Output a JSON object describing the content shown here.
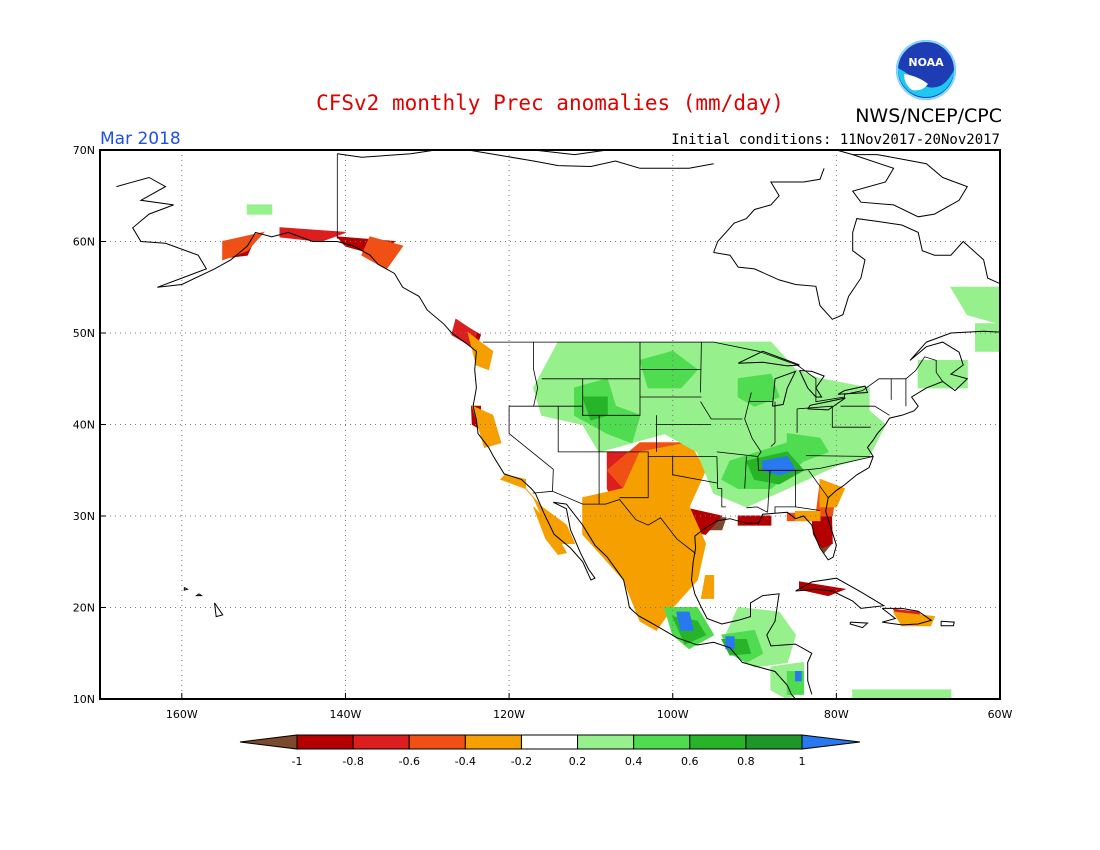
{
  "header": {
    "title": "CFSv2 monthly Prec anomalies (mm/day)",
    "month_label": "Mar 2018",
    "initial_conditions": "Initial conditions: 11Nov2017-20Nov2017",
    "agency": "NWS/NCEP/CPC",
    "logo_text": "NOAA"
  },
  "map": {
    "lon_range": [
      -170,
      -60
    ],
    "lat_range": [
      10,
      70
    ],
    "lon_ticks": [
      {
        "value": -160,
        "label": "160W"
      },
      {
        "value": -140,
        "label": "140W"
      },
      {
        "value": -120,
        "label": "120W"
      },
      {
        "value": -100,
        "label": "100W"
      },
      {
        "value": -80,
        "label": "80W"
      },
      {
        "value": -60,
        "label": "60W"
      }
    ],
    "lat_ticks": [
      {
        "value": 10,
        "label": "10N"
      },
      {
        "value": 20,
        "label": "20N"
      },
      {
        "value": 30,
        "label": "30N"
      },
      {
        "value": 40,
        "label": "40N"
      },
      {
        "value": 50,
        "label": "50N"
      },
      {
        "value": 60,
        "label": "60N"
      },
      {
        "value": 70,
        "label": "70N"
      }
    ],
    "grid": true
  },
  "legend": {
    "labels": [
      "-1",
      "-0.8",
      "-0.6",
      "-0.4",
      "-0.2",
      "0.2",
      "0.4",
      "0.6",
      "0.8",
      "1"
    ],
    "colors": [
      "#7b4a2e",
      "#b40000",
      "#dc1e1e",
      "#f05014",
      "#f5a000",
      "#ffffff",
      "#96f08c",
      "#50dc50",
      "#28b428",
      "#1e9628",
      "#2878f0"
    ]
  },
  "anomaly_regions": [
    {
      "level": "brown",
      "color": "#7b4a2e",
      "polys": [
        [
          [
            -82.5,
            29.5
          ],
          [
            -81.2,
            29.5
          ],
          [
            -80.6,
            27
          ],
          [
            -81.5,
            26
          ],
          [
            -82.5,
            27.5
          ]
        ],
        [
          [
            -95.5,
            29.8
          ],
          [
            -93.5,
            29.8
          ],
          [
            -94,
            28.5
          ],
          [
            -96,
            28.5
          ]
        ],
        [
          0
        ]
      ]
    },
    {
      "level": "dark-red",
      "color": "#b40000",
      "polys": [
        [
          [
            -153,
            59.5
          ],
          [
            -151,
            60.5
          ],
          [
            -152,
            58.5
          ],
          [
            -154,
            58.3
          ]
        ],
        [
          [
            -141,
            60.5
          ],
          [
            -134,
            60
          ],
          [
            -136,
            58.5
          ],
          [
            -140,
            59.5
          ]
        ],
        [
          [
            -125.8,
            51
          ],
          [
            -123.5,
            49.8
          ],
          [
            -124,
            48.5
          ],
          [
            -126,
            49.5
          ]
        ],
        [
          [
            -124.6,
            42
          ],
          [
            -123.5,
            42
          ],
          [
            -123.5,
            39.5
          ],
          [
            -124.5,
            40
          ]
        ],
        [
          [
            -99,
            31
          ],
          [
            -94,
            30
          ],
          [
            -96,
            28
          ],
          [
            -99,
            28.5
          ]
        ],
        [
          [
            -92,
            30
          ],
          [
            -88,
            30
          ],
          [
            -88,
            29
          ],
          [
            -92,
            29
          ]
        ],
        [
          [
            -83,
            30
          ],
          [
            -80.6,
            30
          ],
          [
            -80.5,
            27
          ],
          [
            -81.8,
            26.5
          ],
          [
            -82.8,
            28
          ]
        ],
        [
          [
            -84.5,
            22.8
          ],
          [
            -79,
            22
          ],
          [
            -81,
            21.3
          ],
          [
            -84.5,
            22
          ]
        ]
      ]
    },
    {
      "level": "red",
      "color": "#dc1e1e",
      "polys": [
        [
          [
            -148,
            61.5
          ],
          [
            -140,
            61
          ],
          [
            -143,
            60
          ],
          [
            -148,
            60.5
          ]
        ],
        [
          [
            -108,
            37
          ],
          [
            -101,
            37
          ],
          [
            -101,
            33
          ],
          [
            -104,
            32
          ],
          [
            -107,
            31
          ],
          [
            -108,
            33
          ]
        ],
        [
          [
            -105,
            31.5
          ],
          [
            -100,
            30.5
          ],
          [
            -98,
            29
          ],
          [
            -100,
            28
          ],
          [
            -104,
            29
          ]
        ],
        [
          [
            -82,
            32.5
          ],
          [
            -80,
            32
          ],
          [
            -81,
            30.5
          ],
          [
            -82,
            31
          ]
        ],
        [
          [
            -126.5,
            51.5
          ],
          [
            -124,
            50
          ],
          [
            -124.5,
            48.5
          ],
          [
            -127,
            49.8
          ]
        ],
        [
          [
            -73,
            19.8
          ],
          [
            -70,
            19.5
          ],
          [
            -69,
            18.3
          ],
          [
            -72,
            18.3
          ]
        ]
      ]
    },
    {
      "level": "orange-red",
      "color": "#f05014",
      "polys": [
        [
          [
            -155,
            60
          ],
          [
            -150,
            61
          ],
          [
            -152,
            59
          ],
          [
            -155,
            58
          ]
        ],
        [
          [
            -137,
            60.5
          ],
          [
            -133,
            59.5
          ],
          [
            -135,
            57
          ],
          [
            -138,
            58.5
          ]
        ],
        [
          [
            -104,
            38
          ],
          [
            -99,
            38
          ],
          [
            -97,
            34
          ],
          [
            -100,
            31
          ],
          [
            -105,
            32
          ],
          [
            -108,
            35
          ]
        ],
        [
          [
            -104,
            31
          ],
          [
            -100,
            31
          ],
          [
            -97,
            29
          ],
          [
            -99,
            26
          ],
          [
            -104,
            27
          ]
        ],
        [
          [
            -82,
            33.5
          ],
          [
            -80,
            33
          ],
          [
            -80.5,
            30
          ],
          [
            -82.5,
            30
          ]
        ],
        [
          [
            -86,
            30.3
          ],
          [
            -82.5,
            30.3
          ],
          [
            -83,
            29.5
          ],
          [
            -86,
            29.5
          ]
        ]
      ]
    },
    {
      "level": "orange",
      "color": "#f5a000",
      "polys": [
        [
          [
            -111,
            32
          ],
          [
            -106,
            33
          ],
          [
            -104,
            37
          ],
          [
            -98,
            38
          ],
          [
            -96,
            35
          ],
          [
            -98,
            31
          ],
          [
            -96,
            27
          ],
          [
            -97,
            23
          ],
          [
            -100,
            20
          ],
          [
            -102,
            17.5
          ],
          [
            -104,
            18.5
          ],
          [
            -106,
            23
          ],
          [
            -109,
            26
          ],
          [
            -111,
            28
          ]
        ],
        [
          [
            -118,
            33
          ],
          [
            -116,
            31
          ],
          [
            -113,
            29
          ],
          [
            -112,
            27
          ],
          [
            -114,
            27
          ],
          [
            -116,
            30
          ],
          [
            -117,
            32
          ]
        ],
        [
          [
            -117,
            31
          ],
          [
            -115,
            29
          ],
          [
            -113,
            26
          ],
          [
            -114,
            25.8
          ],
          [
            -115.5,
            27.5
          ]
        ],
        [
          [
            -125,
            50
          ],
          [
            -122,
            48
          ],
          [
            -122.5,
            46
          ],
          [
            -124,
            46.5
          ]
        ],
        [
          [
            -124.5,
            42
          ],
          [
            -122,
            41
          ],
          [
            -121,
            38
          ],
          [
            -123,
            37.5
          ]
        ],
        [
          [
            -120.5,
            34.5
          ],
          [
            -118,
            34
          ],
          [
            -118,
            33
          ],
          [
            -121,
            34
          ]
        ],
        [
          [
            -73,
            19.5
          ],
          [
            -68,
            19
          ],
          [
            -68.5,
            18
          ],
          [
            -72,
            18
          ]
        ],
        [
          [
            -82,
            34
          ],
          [
            -79,
            33
          ],
          [
            -80,
            31
          ],
          [
            -82,
            31
          ]
        ],
        [
          [
            -85,
            30.5
          ],
          [
            -82,
            30.5
          ],
          [
            -82,
            29.5
          ],
          [
            -85,
            29.5
          ]
        ],
        [
          [
            -96,
            23.5
          ],
          [
            -95,
            23.5
          ],
          [
            -95,
            21
          ],
          [
            -96.5,
            21
          ]
        ]
      ]
    },
    {
      "level": "light-green",
      "color": "#96f08c",
      "polys": [
        [
          [
            -114,
            49
          ],
          [
            -88,
            49
          ],
          [
            -85,
            46
          ],
          [
            -82,
            45
          ],
          [
            -76,
            44
          ],
          [
            -76,
            41.5
          ],
          [
            -74,
            40
          ],
          [
            -76,
            36.5
          ],
          [
            -80,
            35.5
          ],
          [
            -86,
            33
          ],
          [
            -91,
            31
          ],
          [
            -95,
            32.5
          ],
          [
            -97,
            37
          ],
          [
            -101,
            39
          ],
          [
            -105,
            38
          ],
          [
            -109,
            37
          ],
          [
            -111,
            40
          ],
          [
            -116,
            41
          ],
          [
            -117,
            44
          ]
        ],
        [
          [
            -152,
            64
          ],
          [
            -149,
            64
          ],
          [
            -149,
            63
          ],
          [
            -152,
            63
          ]
        ],
        [
          [
            -66,
            55
          ],
          [
            -60,
            55
          ],
          [
            -60,
            51
          ],
          [
            -64,
            52
          ]
        ],
        [
          [
            -63,
            51
          ],
          [
            -60,
            51
          ],
          [
            -60,
            48
          ],
          [
            -63,
            48
          ]
        ],
        [
          [
            -70,
            47
          ],
          [
            -64,
            47
          ],
          [
            -64,
            44
          ],
          [
            -70,
            44
          ]
        ],
        [
          [
            -92,
            20
          ],
          [
            -87,
            19.5
          ],
          [
            -85,
            17
          ],
          [
            -86,
            14
          ],
          [
            -90,
            13.5
          ],
          [
            -93,
            15
          ],
          [
            -93.5,
            17
          ]
        ],
        [
          [
            -88,
            13.5
          ],
          [
            -84,
            14
          ],
          [
            -84,
            11
          ],
          [
            -86,
            10
          ],
          [
            -88,
            11
          ]
        ],
        [
          [
            -78,
            11
          ],
          [
            -66,
            11
          ],
          [
            -66,
            10
          ],
          [
            -78,
            10
          ]
        ]
      ]
    },
    {
      "level": "green",
      "color": "#50dc50",
      "polys": [
        [
          [
            -112,
            44
          ],
          [
            -108,
            45
          ],
          [
            -107,
            42
          ],
          [
            -104,
            41
          ],
          [
            -105,
            38
          ],
          [
            -108,
            39
          ],
          [
            -112,
            41
          ]
        ],
        [
          [
            -93,
            36
          ],
          [
            -86,
            38
          ],
          [
            -84,
            36
          ],
          [
            -88,
            33
          ],
          [
            -92,
            33
          ],
          [
            -94,
            34
          ]
        ],
        [
          [
            -86,
            39
          ],
          [
            -82,
            38.5
          ],
          [
            -81,
            37
          ],
          [
            -84,
            36
          ],
          [
            -86,
            37
          ]
        ],
        [
          [
            -101,
            20
          ],
          [
            -97,
            20
          ],
          [
            -95,
            17
          ],
          [
            -98,
            15.5
          ],
          [
            -100,
            17
          ]
        ],
        [
          [
            -94,
            17
          ],
          [
            -90,
            17.5
          ],
          [
            -89,
            15
          ],
          [
            -91,
            14
          ],
          [
            -93,
            15
          ]
        ],
        [
          [
            -86,
            13
          ],
          [
            -84,
            13
          ],
          [
            -84,
            10.5
          ],
          [
            -86,
            10.5
          ]
        ],
        [
          [
            -104,
            47
          ],
          [
            -100,
            48
          ],
          [
            -97,
            46
          ],
          [
            -99,
            44
          ],
          [
            -103,
            44
          ]
        ],
        [
          [
            -92,
            45
          ],
          [
            -88,
            45.5
          ],
          [
            -87,
            43
          ],
          [
            -90,
            42
          ],
          [
            -92,
            43
          ]
        ]
      ]
    },
    {
      "level": "dark-green",
      "color": "#28b428",
      "polys": [
        [
          [
            -91,
            36
          ],
          [
            -86,
            37
          ],
          [
            -84,
            35
          ],
          [
            -87,
            33.5
          ],
          [
            -90,
            34
          ]
        ],
        [
          [
            -100,
            19
          ],
          [
            -97,
            18.5
          ],
          [
            -96,
            17
          ],
          [
            -98.5,
            16
          ]
        ],
        [
          [
            -94,
            16.5
          ],
          [
            -91,
            16.5
          ],
          [
            -90.5,
            15
          ],
          [
            -93,
            14.8
          ]
        ],
        [
          [
            -111,
            43
          ],
          [
            -108,
            43
          ],
          [
            -108,
            41
          ],
          [
            -110,
            40.5
          ]
        ]
      ]
    },
    {
      "level": "blue",
      "color": "#2878f0",
      "polys": [
        [
          [
            -89,
            36
          ],
          [
            -86,
            36.5
          ],
          [
            -85,
            35
          ],
          [
            -87,
            34.5
          ],
          [
            -89,
            35
          ]
        ],
        [
          [
            -99.5,
            19.5
          ],
          [
            -98,
            19.5
          ],
          [
            -97.5,
            17.5
          ],
          [
            -99,
            17.5
          ]
        ],
        [
          [
            -93.5,
            16.8
          ],
          [
            -92.5,
            16.8
          ],
          [
            -92.5,
            15.5
          ],
          [
            -93.5,
            15.5
          ]
        ],
        [
          [
            -85,
            13
          ],
          [
            -84.3,
            13
          ],
          [
            -84.3,
            12
          ],
          [
            -85,
            12
          ]
        ]
      ]
    }
  ]
}
